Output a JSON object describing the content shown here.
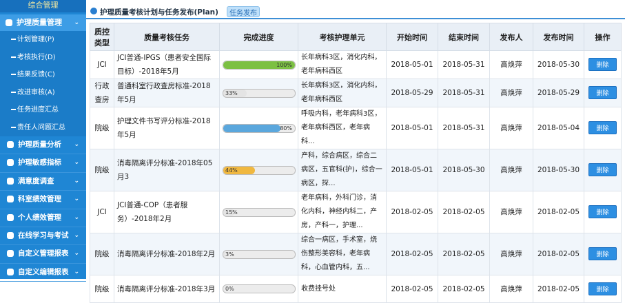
{
  "sidebar": {
    "top": "综合管理",
    "active": "护理质量管理",
    "subitems": [
      "计划管理(P)",
      "考核执行(D)",
      "结果反馈(C)",
      "改进审核(A)",
      "任务进度汇总",
      "责任人问题汇总"
    ],
    "items": [
      "护理质量分析",
      "护理敏感指标",
      "满意度调查",
      "科室绩效管理",
      "个人绩效管理",
      "在线学习与考试",
      "自定义管理报表",
      "自定义编辑报表"
    ]
  },
  "toolbar": {
    "title": "护理质量考核计划与任务发布(Plan)",
    "button": "任务发布"
  },
  "table": {
    "headers": [
      "质控类型",
      "质量考核任务",
      "完成进度",
      "考核护理单元",
      "开始时间",
      "结束时间",
      "发布人",
      "发布时间",
      "操作"
    ],
    "rows": [
      {
        "type": "JCI",
        "task": "JCI普通-IPGS（患者安全国际目标）-2018年5月",
        "progress": 100,
        "progress_label": "100%",
        "bar_color": "#7cc043",
        "units": "长年病科3区，消化内科，老年病科西区",
        "start": "2018-05-01",
        "end": "2018-05-31",
        "publisher": "高焕萍",
        "published": "2018-05-30",
        "action": "删除"
      },
      {
        "type": "行政查房",
        "task": "普通科室行政查房标准-2018年5月",
        "progress": 33,
        "progress_label": "33%",
        "bar_color": "#e4e4e4",
        "units": "长年病科3区，消化内科，老年病科西区",
        "start": "2018-05-29",
        "end": "2018-05-31",
        "publisher": "高焕萍",
        "published": "2018-05-29",
        "action": "删除"
      },
      {
        "type": "院级",
        "task": "护理文件书写评分标准-2018年5月",
        "progress": 80,
        "progress_label": "80%",
        "bar_color": "#5aa7dd",
        "units": "呼吸内科，老年病科3区，老年病科西区，老年病科...",
        "start": "2018-05-01",
        "end": "2018-05-31",
        "publisher": "高焕萍",
        "published": "2018-05-04",
        "action": "删除"
      },
      {
        "type": "院级",
        "task": "消毒隔离评分标准-2018年05月3",
        "progress": 44,
        "progress_label": "44%",
        "bar_color": "#f0b840",
        "units": "产科，综合病区，综合二病区，五官科(护)，综合一病区，探...",
        "start": "2018-05-01",
        "end": "2018-05-30",
        "publisher": "高焕萍",
        "published": "2018-05-30",
        "action": "删除"
      },
      {
        "type": "JCI",
        "task": "JCI普通-COP（患者服务）-2018年2月",
        "progress": 15,
        "progress_label": "15%",
        "bar_color": "#e4e4e4",
        "units": "老年病科，外科门诊，消化内科，神经内科二，产房，产科一，护理...",
        "start": "2018-02-05",
        "end": "2018-02-05",
        "publisher": "高焕萍",
        "published": "2018-02-05",
        "action": "删除"
      },
      {
        "type": "院级",
        "task": "消毒隔离评分标准-2018年2月",
        "progress": 3,
        "progress_label": "3%",
        "bar_color": "#e4e4e4",
        "units": "综合一病区，手术室，烧伤整形美容科，老年病科，心血管内科，五...",
        "start": "2018-02-05",
        "end": "2018-02-05",
        "publisher": "高焕萍",
        "published": "2018-02-05",
        "action": "删除"
      },
      {
        "type": "院级",
        "task": "消毒隔离评分标准-2018年3月",
        "progress": 0,
        "progress_label": "0%",
        "bar_color": "#e4e4e4",
        "units": "收费挂号处",
        "start": "2018-02-05",
        "end": "2018-02-05",
        "publisher": "高焕萍",
        "published": "2018-02-05",
        "action": "删除"
      }
    ]
  }
}
